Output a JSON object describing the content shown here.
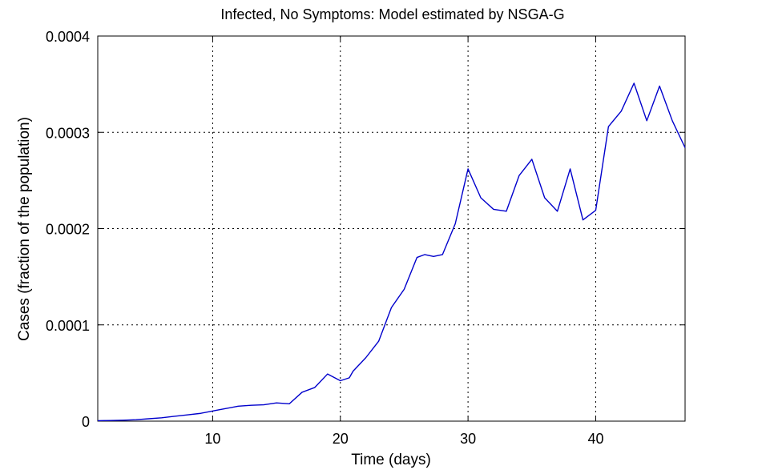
{
  "chart_data": {
    "type": "line",
    "title": "Infected, No Symptoms: Model estimated by NSGA-G",
    "xlabel": "Time (days)",
    "ylabel": "Cases (fraction of the population)",
    "xlim": [
      1,
      47
    ],
    "ylim": [
      0,
      0.0004
    ],
    "xticks": [
      10,
      20,
      30,
      40
    ],
    "yticks": [
      0,
      0.0001,
      0.0002,
      0.0003,
      0.0004
    ],
    "ytick_labels": [
      "0",
      "0.0001",
      "0.0002",
      "0.0003",
      "0.0004"
    ],
    "grid": true,
    "grid_style": "dotted",
    "series": [
      {
        "color": "#0000cc",
        "x": [
          1,
          2,
          3,
          4,
          5,
          6,
          7,
          8,
          9,
          10,
          11,
          12,
          13,
          14,
          15,
          16,
          17,
          18,
          19,
          20,
          20.7,
          21,
          22,
          23,
          24,
          25,
          26,
          26.6,
          27.3,
          28,
          29,
          30,
          31,
          32,
          33,
          34,
          35,
          36,
          37,
          38,
          39,
          40,
          41,
          42,
          43,
          44,
          45,
          46,
          47
        ],
        "y": [
          5e-07,
          7e-07,
          1e-06,
          1.5e-06,
          2.5e-06,
          3.5e-06,
          5e-06,
          6.5e-06,
          8e-06,
          1.05e-05,
          1.3e-05,
          1.55e-05,
          1.65e-05,
          1.7e-05,
          1.9e-05,
          1.8e-05,
          3e-05,
          3.5e-05,
          4.9e-05,
          4.2e-05,
          4.5e-05,
          5.2e-05,
          6.6e-05,
          8.3e-05,
          0.000118,
          0.000137,
          0.00017,
          0.000173,
          0.000171,
          0.000173,
          0.000205,
          0.000262,
          0.000232,
          0.00022,
          0.000218,
          0.000255,
          0.000272,
          0.000232,
          0.000218,
          0.000262,
          0.000209,
          0.000219,
          0.000306,
          0.000322,
          0.000351,
          0.000312,
          0.000348,
          0.000312,
          0.000284
        ]
      }
    ]
  }
}
